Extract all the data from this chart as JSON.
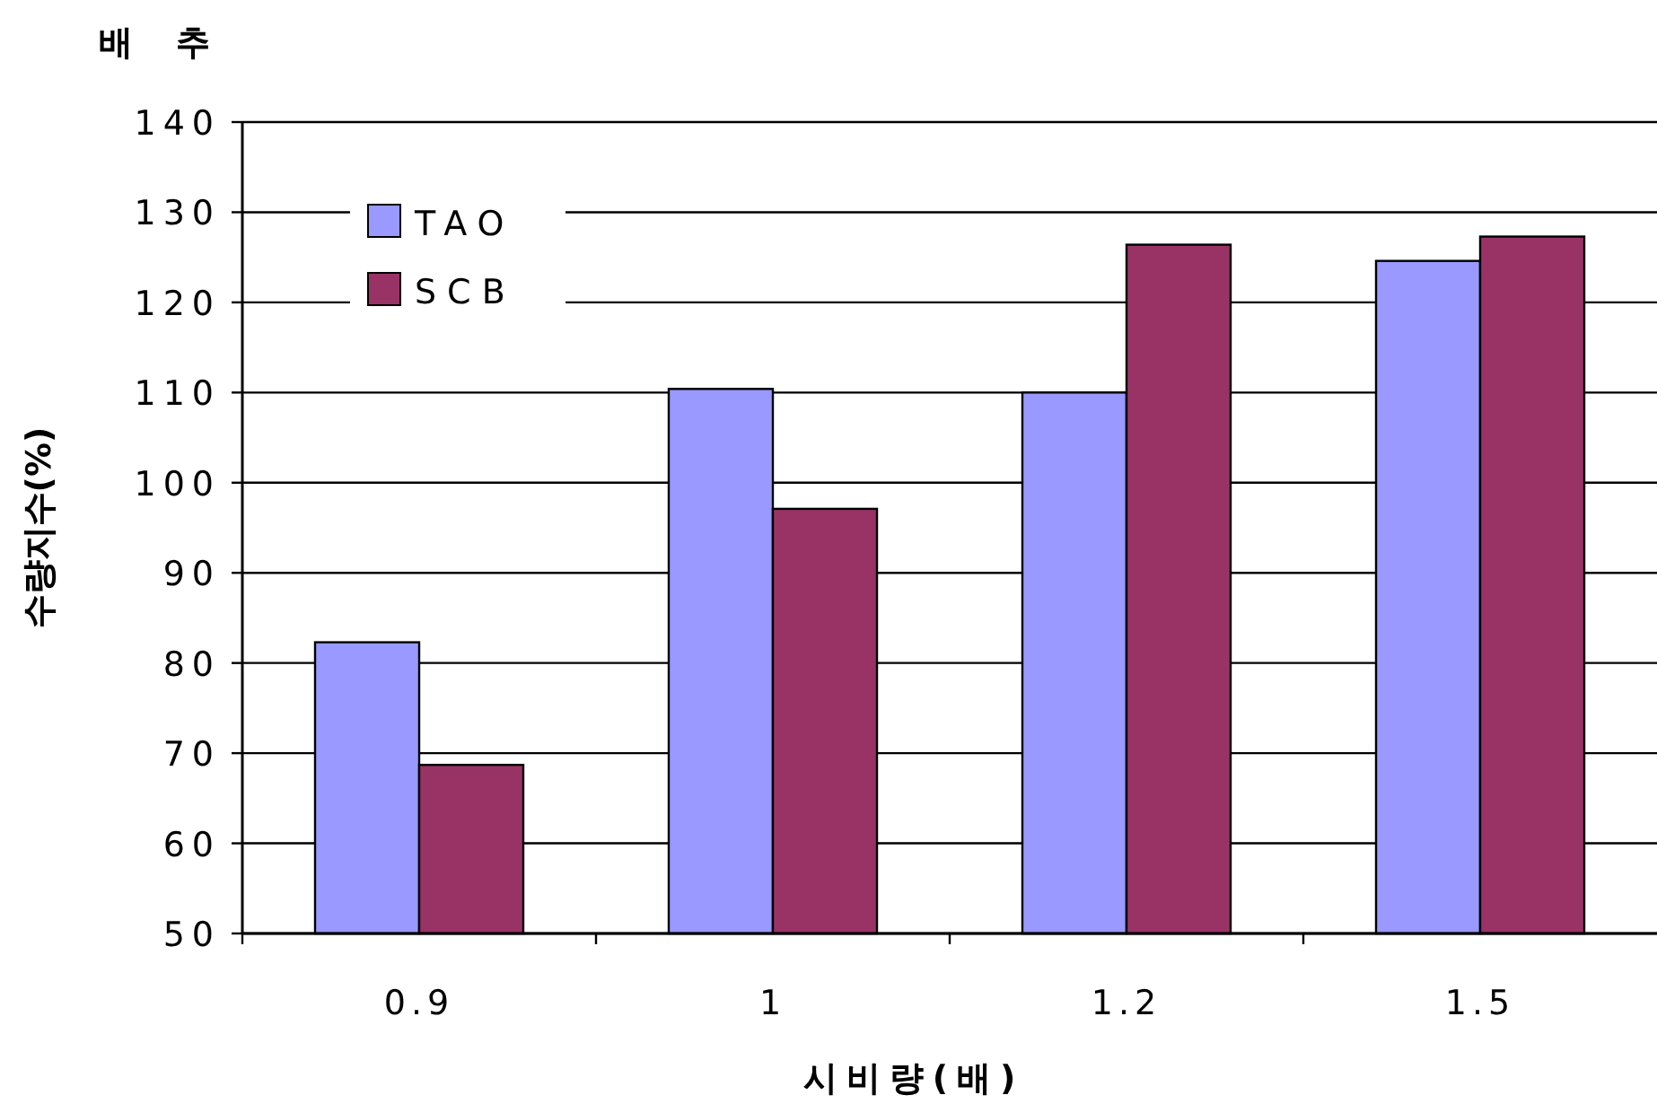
{
  "chart_data": {
    "type": "bar",
    "title": "배추",
    "xlabel": "시비량(배)",
    "ylabel": "수량지수(%)",
    "categories": [
      "0.9",
      "1",
      "1.2",
      "1.5"
    ],
    "series": [
      {
        "name": "TAO",
        "color": "#9999ff",
        "values": [
          82.3,
          110.4,
          110,
          124.6
        ]
      },
      {
        "name": "SCB",
        "color": "#993366",
        "values": [
          68.7,
          97.1,
          126.4,
          127.3
        ]
      }
    ],
    "ylim": [
      50,
      140
    ],
    "yticks": [
      50,
      60,
      70,
      80,
      90,
      100,
      110,
      120,
      130,
      140
    ],
    "grid": "y",
    "legend": "top left"
  }
}
